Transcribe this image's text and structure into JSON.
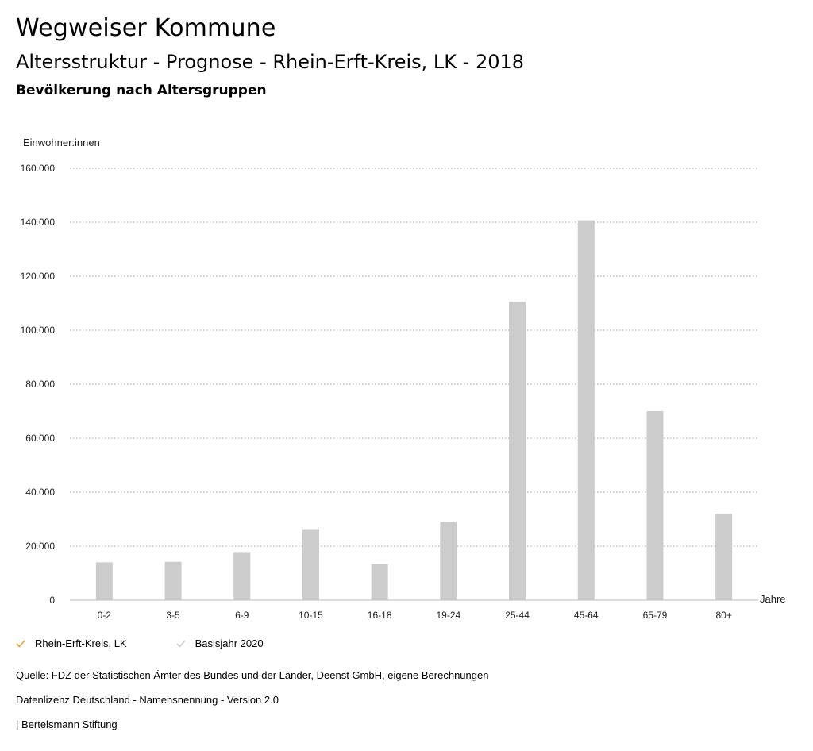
{
  "header": {
    "title": "Wegweiser Kommune",
    "subtitle": "Altersstruktur - Prognose - Rhein-Erft-Kreis, LK - 2018",
    "chart_heading": "Bevölkerung nach Altersgruppen"
  },
  "chart_data": {
    "type": "bar",
    "ylabel": "Einwohner:innen",
    "xlabel": "Jahre",
    "ylim": [
      0,
      160000
    ],
    "yticks": [
      0,
      20000,
      40000,
      60000,
      80000,
      100000,
      120000,
      140000,
      160000
    ],
    "ytick_labels": [
      "0",
      "20.000",
      "40.000",
      "60.000",
      "80.000",
      "100.000",
      "120.000",
      "140.000",
      "160.000"
    ],
    "grid": true,
    "categories": [
      "0-2",
      "3-5",
      "6-9",
      "10-15",
      "16-18",
      "19-24",
      "25-44",
      "45-64",
      "65-79",
      "80+"
    ],
    "series": [
      {
        "name": "Rhein-Erft-Kreis, LK",
        "color": "#cccccc",
        "values": [
          14000,
          14200,
          17800,
          26300,
          13300,
          29000,
          110500,
          140700,
          70000,
          32000
        ]
      }
    ]
  },
  "legend": {
    "items": [
      {
        "label": "Rhein-Erft-Kreis, LK",
        "color": "#f0a030"
      },
      {
        "label": "Basisjahr 2020",
        "color": "#cccccc"
      }
    ]
  },
  "footer": {
    "source": "Quelle: FDZ der Statistischen Ämter des Bundes und der Länder, Deenst GmbH, eigene Berechnungen",
    "license": "Datenlizenz Deutschland - Namensnennung - Version 2.0",
    "publisher": "| Bertelsmann Stiftung"
  }
}
